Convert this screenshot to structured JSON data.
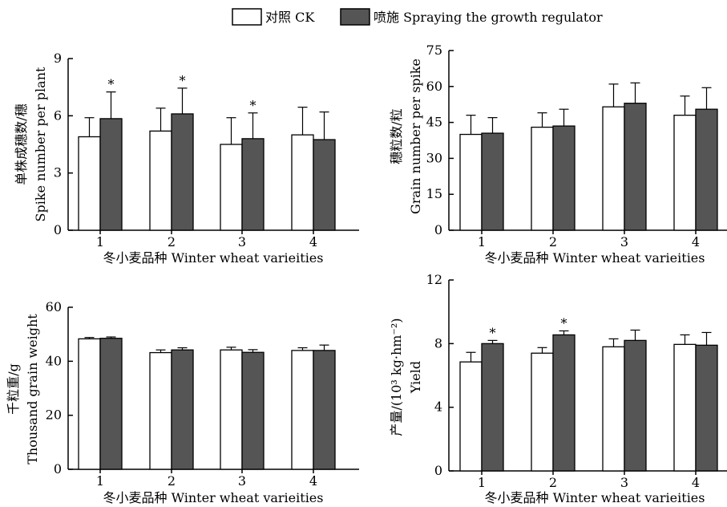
{
  "legend": {
    "items": [
      {
        "label": "对照 CK",
        "color": "#ffffff"
      },
      {
        "label": "喷施 Spraying the growth regulator",
        "color": "#555555"
      }
    ]
  },
  "colors": {
    "ck": "#ffffff",
    "spray": "#555555",
    "axis": "#000000"
  },
  "chart_data": [
    {
      "type": "bar",
      "id": "spike",
      "xlabel": "冬小麦品种 Winter wheat varieities",
      "ylabel_cn": "单株成穗数/穗",
      "ylabel_en": "Spike number per plant",
      "categories": [
        "1",
        "2",
        "3",
        "4"
      ],
      "ylim": [
        0,
        9
      ],
      "yticks": [
        0,
        3,
        6,
        9
      ],
      "series": [
        {
          "values": [
            4.9,
            5.2,
            4.5,
            5.0
          ],
          "errors": [
            1.0,
            1.2,
            1.4,
            1.45
          ]
        },
        {
          "values": [
            5.85,
            6.1,
            4.8,
            4.75
          ],
          "errors": [
            1.4,
            1.35,
            1.35,
            1.45
          ]
        }
      ],
      "annotations": [
        {
          "category": "1",
          "series": 1,
          "text": "*"
        },
        {
          "category": "2",
          "series": 1,
          "text": "*"
        },
        {
          "category": "3",
          "series": 1,
          "text": "*"
        }
      ]
    },
    {
      "type": "bar",
      "id": "grain",
      "xlabel": "冬小麦品种 Winter wheat varieities",
      "ylabel_cn": "穗粒数/粒",
      "ylabel_en": "Grain number per spike",
      "categories": [
        "1",
        "2",
        "3",
        "4"
      ],
      "ylim": [
        0,
        75
      ],
      "yticks": [
        0,
        15,
        30,
        45,
        60,
        75
      ],
      "series": [
        {
          "values": [
            40,
            43,
            51.5,
            48
          ],
          "errors": [
            8,
            6,
            9.5,
            8
          ]
        },
        {
          "values": [
            40.5,
            43.5,
            53,
            50.5
          ],
          "errors": [
            6.5,
            7,
            8.5,
            9
          ]
        }
      ],
      "annotations": []
    },
    {
      "type": "bar",
      "id": "tgw",
      "xlabel": "冬小麦品种 Winter wheat varieities",
      "ylabel_cn": "千粒重/g",
      "ylabel_en": "Thousand grain weight",
      "categories": [
        "1",
        "2",
        "3",
        "4"
      ],
      "ylim": [
        0,
        60
      ],
      "yticks": [
        0,
        20,
        40,
        60
      ],
      "series": [
        {
          "values": [
            48.3,
            43.2,
            44.2,
            44.0
          ],
          "errors": [
            0.5,
            1.0,
            1.0,
            1.0
          ]
        },
        {
          "values": [
            48.5,
            44.2,
            43.3,
            44.0
          ],
          "errors": [
            0.5,
            0.8,
            1.0,
            2.0
          ]
        }
      ],
      "annotations": []
    },
    {
      "type": "bar",
      "id": "yield",
      "xlabel": "冬小麦品种 Winter wheat varieities",
      "ylabel_cn": "产量/(10³ kg·hm⁻²)",
      "ylabel_en": "Yield",
      "categories": [
        "1",
        "2",
        "3",
        "4"
      ],
      "ylim": [
        0,
        12
      ],
      "yticks": [
        0,
        4,
        8,
        12
      ],
      "series": [
        {
          "values": [
            6.85,
            7.4,
            7.8,
            7.95
          ],
          "errors": [
            0.6,
            0.35,
            0.5,
            0.6
          ]
        },
        {
          "values": [
            8.0,
            8.55,
            8.2,
            7.9
          ],
          "errors": [
            0.2,
            0.25,
            0.65,
            0.8
          ]
        }
      ],
      "annotations": [
        {
          "category": "1",
          "series": 1,
          "text": "*"
        },
        {
          "category": "2",
          "series": 1,
          "text": "*"
        }
      ]
    }
  ]
}
